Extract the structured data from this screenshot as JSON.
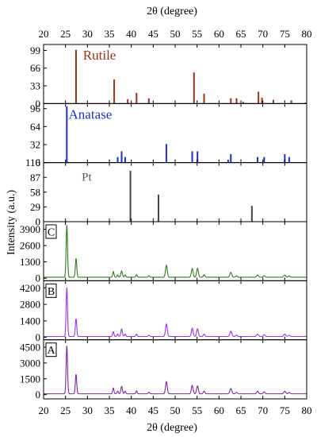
{
  "chart_data": {
    "type": "line",
    "xlabel_top": "2θ (degree)",
    "xlabel_bottom": "2θ (degree)",
    "ylabel": "Intensity (a.u.)",
    "xlim": [
      20,
      80
    ],
    "xticks": [
      20,
      25,
      30,
      35,
      40,
      45,
      50,
      55,
      60,
      65,
      70,
      75,
      80
    ],
    "panels": [
      {
        "id": "rutile",
        "kind": "stick",
        "label": "Rutile",
        "color": "#a0301c",
        "label_color": "#a0301c",
        "ylim": [
          0,
          110
        ],
        "yticks": [
          0,
          33,
          66,
          99
        ],
        "peaks": [
          [
            27.4,
            100
          ],
          [
            36.1,
            45
          ],
          [
            39.2,
            8
          ],
          [
            41.2,
            20
          ],
          [
            44.0,
            10
          ],
          [
            54.3,
            58
          ],
          [
            56.6,
            18
          ],
          [
            62.7,
            10
          ],
          [
            64.0,
            10
          ],
          [
            65.5,
            3
          ],
          [
            69.0,
            22
          ],
          [
            69.8,
            11
          ],
          [
            72.4,
            7
          ],
          [
            76.5,
            6
          ],
          [
            79.8,
            2
          ]
        ]
      },
      {
        "id": "anatase",
        "kind": "stick",
        "label": "Anatase",
        "color": "#1f2fc8",
        "label_color": "#1f2fc8",
        "ylim": [
          0,
          105
        ],
        "yticks": [
          0,
          32,
          64,
          96
        ],
        "peaks": [
          [
            25.3,
            100
          ],
          [
            36.9,
            10
          ],
          [
            37.8,
            20
          ],
          [
            38.6,
            10
          ],
          [
            48.0,
            33
          ],
          [
            53.9,
            20
          ],
          [
            55.1,
            20
          ],
          [
            62.1,
            5
          ],
          [
            62.7,
            15
          ],
          [
            68.8,
            10
          ],
          [
            70.3,
            10
          ],
          [
            75.0,
            15
          ],
          [
            76.0,
            10
          ]
        ]
      },
      {
        "id": "pt",
        "kind": "stick",
        "label": "Pt",
        "color": "#444444",
        "label_color": "#555555",
        "ylim": [
          0,
          116
        ],
        "yticks": [
          0,
          29,
          58,
          87,
          116
        ],
        "peaks": [
          [
            39.8,
            100
          ],
          [
            46.2,
            53
          ],
          [
            67.5,
            31
          ]
        ]
      },
      {
        "id": "C",
        "kind": "pattern",
        "label": "C",
        "color": "#2f7a1e",
        "ylim": [
          -200,
          4500
        ],
        "yticks": [
          0,
          1300,
          2600,
          3900
        ],
        "baseline": 80,
        "peaks": [
          [
            25.3,
            4150,
            0.16
          ],
          [
            27.4,
            1500,
            0.16
          ],
          [
            35.9,
            450,
            0.15
          ],
          [
            36.9,
            180,
            0.15
          ],
          [
            37.8,
            500,
            0.18
          ],
          [
            38.6,
            180,
            0.15
          ],
          [
            41.2,
            200,
            0.15
          ],
          [
            44.0,
            120,
            0.15
          ],
          [
            48.0,
            950,
            0.2
          ],
          [
            53.9,
            700,
            0.2
          ],
          [
            55.1,
            700,
            0.2
          ],
          [
            56.6,
            200,
            0.18
          ],
          [
            62.7,
            380,
            0.22
          ],
          [
            64.0,
            120,
            0.18
          ],
          [
            68.8,
            180,
            0.2
          ],
          [
            70.3,
            120,
            0.2
          ],
          [
            75.0,
            170,
            0.22
          ],
          [
            76.0,
            100,
            0.2
          ]
        ]
      },
      {
        "id": "B",
        "kind": "pattern",
        "label": "B",
        "color": "#9a33e8",
        "ylim": [
          -200,
          4800
        ],
        "yticks": [
          0,
          1400,
          2800,
          4200
        ],
        "baseline": 80,
        "peaks": [
          [
            25.3,
            4150,
            0.16
          ],
          [
            27.4,
            1500,
            0.16
          ],
          [
            35.9,
            400,
            0.15
          ],
          [
            36.9,
            200,
            0.15
          ],
          [
            37.8,
            650,
            0.18
          ],
          [
            38.6,
            200,
            0.15
          ],
          [
            41.2,
            200,
            0.15
          ],
          [
            44.0,
            120,
            0.15
          ],
          [
            48.0,
            1050,
            0.2
          ],
          [
            53.9,
            700,
            0.2
          ],
          [
            55.1,
            650,
            0.2
          ],
          [
            56.6,
            200,
            0.18
          ],
          [
            62.7,
            450,
            0.22
          ],
          [
            64.0,
            120,
            0.18
          ],
          [
            68.8,
            200,
            0.2
          ],
          [
            70.3,
            150,
            0.2
          ],
          [
            75.0,
            200,
            0.22
          ],
          [
            76.0,
            100,
            0.2
          ]
        ]
      },
      {
        "id": "A",
        "kind": "pattern",
        "label": "A",
        "color": "#7d28a0",
        "ylim": [
          -400,
          5200
        ],
        "yticks": [
          0,
          1500,
          3000,
          4500
        ],
        "baseline": 80,
        "peaks": [
          [
            25.3,
            4550,
            0.16
          ],
          [
            27.4,
            1850,
            0.16
          ],
          [
            35.9,
            550,
            0.15
          ],
          [
            36.9,
            250,
            0.15
          ],
          [
            37.8,
            700,
            0.18
          ],
          [
            38.6,
            250,
            0.15
          ],
          [
            41.2,
            280,
            0.15
          ],
          [
            44.0,
            150,
            0.15
          ],
          [
            48.0,
            1150,
            0.2
          ],
          [
            53.9,
            800,
            0.2
          ],
          [
            55.1,
            750,
            0.2
          ],
          [
            56.6,
            250,
            0.18
          ],
          [
            62.7,
            500,
            0.22
          ],
          [
            64.0,
            150,
            0.18
          ],
          [
            68.8,
            250,
            0.2
          ],
          [
            70.3,
            180,
            0.2
          ],
          [
            75.0,
            250,
            0.22
          ],
          [
            76.0,
            120,
            0.2
          ]
        ]
      }
    ]
  }
}
